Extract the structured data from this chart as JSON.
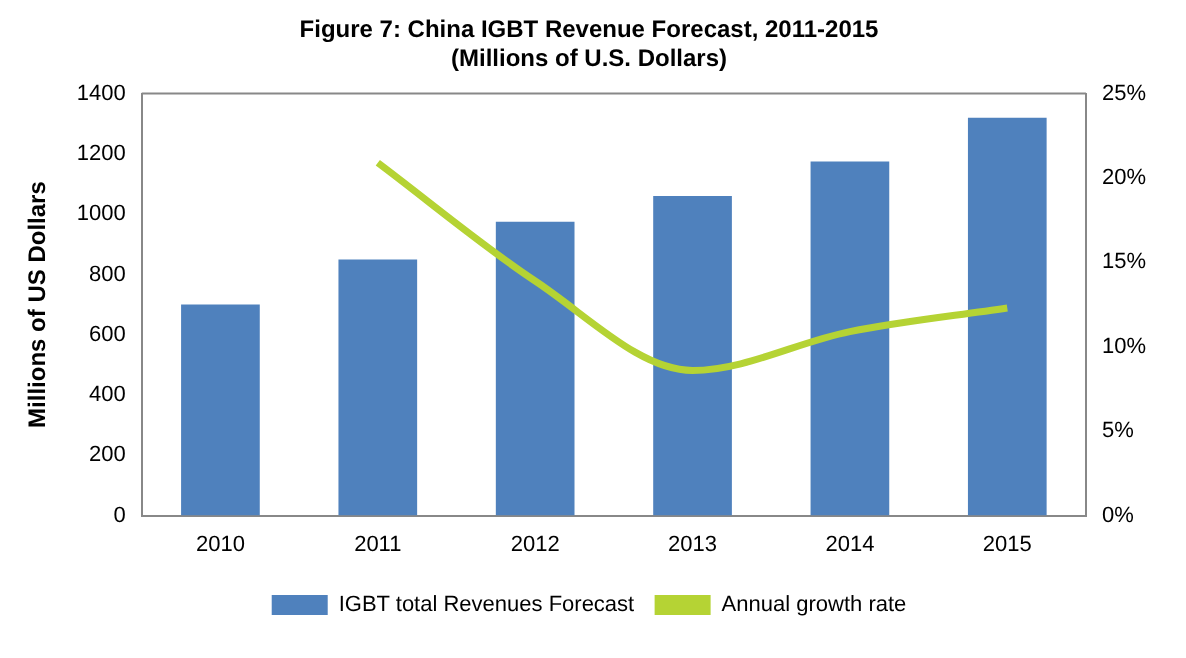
{
  "chart_data": {
    "type": "bar",
    "title": "Figure 7: China IGBT Revenue Forecast, 2011-2015",
    "subtitle": "(Millions of U.S. Dollars)",
    "ylabel": "Millions of US Dollars",
    "categories": [
      "2010",
      "2011",
      "2012",
      "2013",
      "2014",
      "2015"
    ],
    "series": [
      {
        "name": "IGBT total Revenues Forecast",
        "color": "#4f81bd",
        "values": [
          700,
          850,
          975,
          1060,
          1175,
          1320
        ]
      },
      {
        "name": "Annual growth rate",
        "type": "line",
        "color": "#b5d334",
        "axis": "y2",
        "values": [
          null,
          20.9,
          13.9,
          8.6,
          10.9,
          12.3
        ]
      }
    ],
    "ylim": [
      0,
      1400
    ],
    "yticks": [
      0,
      200,
      400,
      600,
      800,
      1000,
      1200,
      1400
    ],
    "y2lim": [
      0,
      25
    ],
    "y2ticks": [
      {
        "value": 0,
        "label": "0%"
      },
      {
        "value": 5,
        "label": "5%"
      },
      {
        "value": 10,
        "label": "10%"
      },
      {
        "value": 15,
        "label": "15%"
      },
      {
        "value": 20,
        "label": "20%"
      },
      {
        "value": 25,
        "label": "25%"
      }
    ],
    "grid": false,
    "legend": "bottom",
    "marker": "none"
  }
}
